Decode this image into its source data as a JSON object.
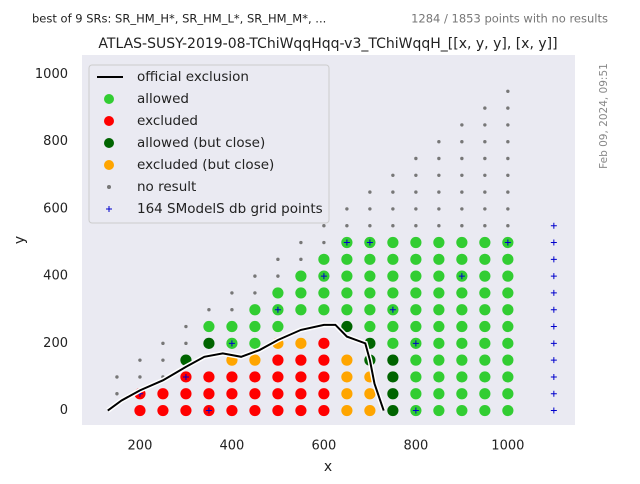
{
  "chart_data": {
    "type": "scatter",
    "header_left": "best of 9 SRs: SR_HM_H*, SR_HM_L*, SR_HM_M*, ...",
    "header_right": "1284 / 1853 points with no results",
    "title": "ATLAS-SUSY-2019-08-TChiWqqHqq-v3_TChiWqqH_[[x, y, y], [x, y]]",
    "timestamp": "Feb 09, 2024, 09:51",
    "x_label": "x",
    "y_label": "y",
    "xlim": [
      74,
      1146
    ],
    "ylim": [
      -43,
      1058
    ],
    "xticks": [
      200,
      400,
      600,
      800,
      1000
    ],
    "yticks": [
      0,
      200,
      400,
      600,
      800,
      1000
    ],
    "grid": false,
    "legend_position": "upper left",
    "series": [
      {
        "name": "official exclusion",
        "color": "#000000",
        "marker": "line",
        "x": [
          130,
          160,
          200,
          250,
          300,
          340,
          380,
          420,
          460,
          500,
          550,
          600,
          625,
          650,
          690,
          700,
          710,
          730
        ],
        "y": [
          0,
          30,
          60,
          90,
          130,
          160,
          170,
          160,
          180,
          210,
          240,
          255,
          255,
          220,
          200,
          150,
          80,
          0
        ]
      },
      {
        "name": "allowed",
        "color": "#32cd32",
        "marker": "circle",
        "x": [
          350,
          400,
          400,
          450,
          450,
          450,
          500,
          500,
          500,
          550,
          550,
          550,
          600,
          600,
          600,
          600,
          650,
          650,
          650,
          650,
          650,
          700,
          700,
          700,
          700,
          700,
          700,
          750,
          750,
          750,
          750,
          750,
          750,
          750,
          800,
          800,
          800,
          800,
          800,
          800,
          800,
          800,
          800,
          800,
          800,
          850,
          850,
          850,
          850,
          850,
          850,
          850,
          850,
          850,
          850,
          850,
          900,
          900,
          900,
          900,
          900,
          900,
          900,
          900,
          900,
          900,
          900,
          950,
          950,
          950,
          950,
          950,
          950,
          950,
          950,
          950,
          950,
          950,
          1000,
          1000,
          1000,
          1000,
          1000,
          1000,
          1000,
          1000,
          1000,
          1000,
          1000
        ],
        "y": [
          250,
          200,
          250,
          200,
          250,
          300,
          250,
          300,
          350,
          300,
          350,
          400,
          300,
          350,
          400,
          450,
          300,
          350,
          400,
          450,
          500,
          250,
          300,
          350,
          400,
          450,
          500,
          200,
          250,
          300,
          350,
          400,
          450,
          500,
          0,
          50,
          100,
          150,
          200,
          250,
          300,
          350,
          400,
          450,
          500,
          0,
          50,
          100,
          150,
          200,
          250,
          300,
          350,
          400,
          450,
          500,
          0,
          50,
          100,
          150,
          200,
          250,
          300,
          350,
          400,
          450,
          500,
          0,
          50,
          100,
          150,
          200,
          250,
          300,
          350,
          400,
          450,
          500,
          0,
          50,
          100,
          150,
          200,
          250,
          300,
          350,
          400,
          450,
          500
        ]
      },
      {
        "name": "excluded",
        "color": "#ff0000",
        "marker": "circle",
        "x": [
          200,
          200,
          250,
          250,
          300,
          300,
          300,
          350,
          350,
          350,
          400,
          400,
          400,
          450,
          450,
          450,
          500,
          500,
          500,
          500,
          550,
          550,
          550,
          550,
          600,
          600,
          600,
          600,
          600
        ],
        "y": [
          0,
          50,
          0,
          50,
          0,
          50,
          100,
          0,
          50,
          100,
          0,
          50,
          100,
          0,
          50,
          100,
          0,
          50,
          100,
          150,
          0,
          50,
          100,
          150,
          0,
          50,
          100,
          150,
          200
        ]
      },
      {
        "name": "allowed (but close)",
        "color": "#006400",
        "marker": "circle",
        "x": [
          300,
          350,
          650,
          700,
          700,
          750,
          750,
          750,
          750
        ],
        "y": [
          150,
          200,
          250,
          150,
          200,
          0,
          50,
          100,
          150
        ]
      },
      {
        "name": "excluded (but close)",
        "color": "#ffa500",
        "marker": "circle",
        "x": [
          400,
          450,
          500,
          550,
          650,
          650,
          650,
          650,
          700,
          700,
          700
        ],
        "y": [
          150,
          150,
          200,
          200,
          0,
          50,
          100,
          150,
          0,
          50,
          100
        ]
      },
      {
        "name": "no result",
        "color": "#777777",
        "marker": "dot",
        "x": [
          150,
          150,
          200,
          200,
          250,
          250,
          250,
          300,
          300,
          350,
          400,
          400,
          450,
          450,
          500,
          500,
          550,
          550,
          600,
          600,
          650,
          650,
          700,
          700,
          700,
          750,
          750,
          750,
          750,
          800,
          800,
          800,
          800,
          800,
          850,
          850,
          850,
          850,
          850,
          850,
          900,
          900,
          900,
          900,
          900,
          900,
          900,
          950,
          950,
          950,
          950,
          950,
          950,
          950,
          950,
          1000,
          1000,
          1000,
          1000,
          1000,
          1000,
          1000,
          1000,
          1000
        ],
        "y": [
          50,
          100,
          100,
          150,
          100,
          150,
          200,
          200,
          250,
          300,
          300,
          350,
          350,
          400,
          400,
          450,
          450,
          500,
          500,
          550,
          550,
          600,
          550,
          600,
          650,
          550,
          600,
          650,
          700,
          550,
          600,
          650,
          700,
          750,
          550,
          600,
          650,
          700,
          750,
          800,
          550,
          600,
          650,
          700,
          750,
          800,
          850,
          550,
          600,
          650,
          700,
          750,
          800,
          850,
          900,
          550,
          600,
          650,
          700,
          750,
          800,
          850,
          900,
          950
        ]
      },
      {
        "name": "164 SModelS db grid points",
        "color": "#0000cc",
        "marker": "plus",
        "x": [
          1100,
          1100,
          1100,
          1100,
          1100,
          1100,
          1100,
          1100,
          1100,
          1100,
          1100,
          1100,
          200,
          300,
          400,
          500,
          600,
          700,
          800,
          800,
          900,
          1000,
          350,
          650,
          750
        ],
        "y": [
          0,
          50,
          100,
          150,
          200,
          250,
          300,
          350,
          400,
          450,
          500,
          550,
          50,
          100,
          200,
          300,
          400,
          500,
          0,
          200,
          400,
          500,
          0,
          500,
          300
        ]
      }
    ]
  }
}
